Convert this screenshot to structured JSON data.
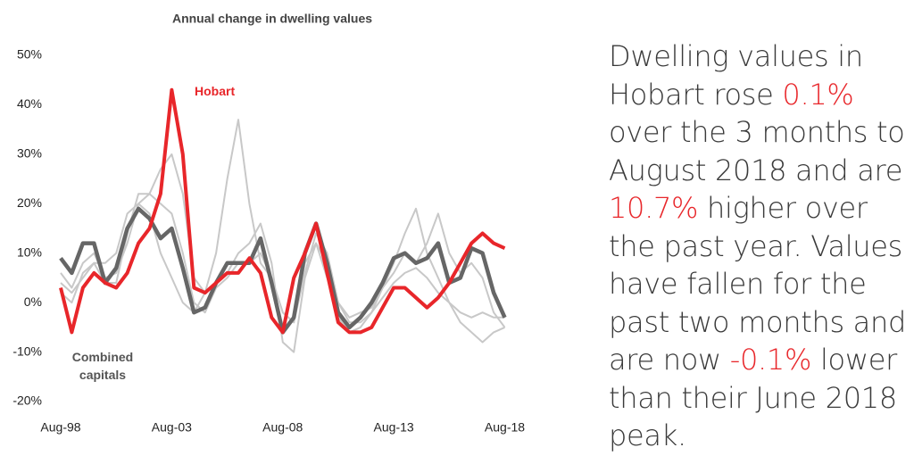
{
  "chart_data": {
    "type": "line",
    "title": "Annual change in dwelling values",
    "x": [
      1998.6,
      1999.1,
      1999.6,
      2000.1,
      2000.6,
      2001.1,
      2001.6,
      2002.1,
      2002.6,
      2003.1,
      2003.6,
      2004.1,
      2004.6,
      2005.1,
      2005.6,
      2006.1,
      2006.6,
      2007.1,
      2007.6,
      2008.1,
      2008.6,
      2009.1,
      2009.6,
      2010.1,
      2010.6,
      2011.1,
      2011.6,
      2012.1,
      2012.6,
      2013.1,
      2013.6,
      2014.1,
      2014.6,
      2015.1,
      2015.6,
      2016.1,
      2016.6,
      2017.1,
      2017.6,
      2018.1,
      2018.6
    ],
    "xlim": [
      1998.6,
      2018.7
    ],
    "xticks": [
      {
        "value": 1998.6,
        "label": "Aug-98"
      },
      {
        "value": 2003.6,
        "label": "Aug-03"
      },
      {
        "value": 2008.6,
        "label": "Aug-08"
      },
      {
        "value": 2013.6,
        "label": "Aug-13"
      },
      {
        "value": 2018.6,
        "label": "Aug-18"
      }
    ],
    "ylim": [
      -20,
      50
    ],
    "yticks": [
      {
        "value": -20,
        "label": "-20%"
      },
      {
        "value": -10,
        "label": "-10%"
      },
      {
        "value": 0,
        "label": "0%"
      },
      {
        "value": 10,
        "label": "10%"
      },
      {
        "value": 20,
        "label": "20%"
      },
      {
        "value": 30,
        "label": "30%"
      },
      {
        "value": 40,
        "label": "40%"
      },
      {
        "value": 50,
        "label": "50%"
      }
    ],
    "series": [
      {
        "name": "Hobart",
        "color": "#e8262a",
        "values": [
          3,
          -6,
          3,
          6,
          4,
          3,
          6,
          12,
          15,
          22,
          43,
          30,
          3,
          2,
          4,
          6,
          6,
          9,
          6,
          -3,
          -6,
          5,
          10,
          16,
          6,
          -4,
          -6,
          -6,
          -5,
          -1,
          3,
          3,
          1,
          -1,
          1,
          4,
          8,
          12,
          14,
          12,
          11
        ]
      },
      {
        "name": "Combined capitals",
        "color": "#666666",
        "values": [
          9,
          6,
          12,
          12,
          4,
          7,
          15,
          19,
          17,
          13,
          15,
          7,
          -2,
          -1,
          4,
          8,
          8,
          8,
          13,
          4,
          -6,
          -3,
          10,
          16,
          8,
          -2,
          -5,
          -3,
          0,
          4,
          9,
          10,
          8,
          9,
          12,
          4,
          5,
          11,
          10,
          2,
          -3
        ]
      },
      {
        "color": "#c8c8c8",
        "values": [
          4,
          2,
          5,
          8,
          8,
          10,
          18,
          20,
          18,
          10,
          5,
          0,
          -2,
          2,
          10,
          25,
          37,
          20,
          8,
          5,
          -2,
          -4,
          8,
          12,
          5,
          0,
          -3,
          -2,
          -1,
          3,
          6,
          10,
          8,
          12,
          18,
          10,
          6,
          8,
          5,
          -2,
          -5
        ]
      },
      {
        "color": "#c8c8c8",
        "values": [
          6,
          3,
          8,
          10,
          5,
          6,
          12,
          20,
          22,
          27,
          30,
          22,
          5,
          2,
          4,
          6,
          10,
          12,
          16,
          8,
          -8,
          -10,
          5,
          12,
          8,
          -3,
          -6,
          -5,
          -2,
          3,
          8,
          14,
          19,
          10,
          5,
          0,
          -4,
          -6,
          -8,
          -6,
          -5
        ]
      },
      {
        "color": "#c8c8c8",
        "values": [
          2,
          0,
          6,
          8,
          4,
          4,
          14,
          22,
          22,
          20,
          18,
          10,
          0,
          -2,
          3,
          5,
          8,
          8,
          10,
          5,
          -2,
          -4,
          6,
          14,
          10,
          0,
          -4,
          -4,
          -2,
          1,
          4,
          6,
          7,
          5,
          2,
          0,
          -2,
          -3,
          -2,
          -3,
          -3
        ]
      }
    ]
  },
  "commentary": [
    {
      "text": "Dwelling values in Hobart rose ",
      "color": "#3a3a3a"
    },
    {
      "text": "0.1%",
      "color": "#e8262a"
    },
    {
      "text": " over the 3 months to August 2018 and are ",
      "color": "#3a3a3a"
    },
    {
      "text": "10.7%",
      "color": "#e8262a"
    },
    {
      "text": " higher over the past year. Values have fallen for the past two months and are now ",
      "color": "#3a3a3a"
    },
    {
      "text": "-0.1%",
      "color": "#e8262a"
    },
    {
      "text": " lower than their June 2018 peak.",
      "color": "#3a3a3a"
    }
  ]
}
